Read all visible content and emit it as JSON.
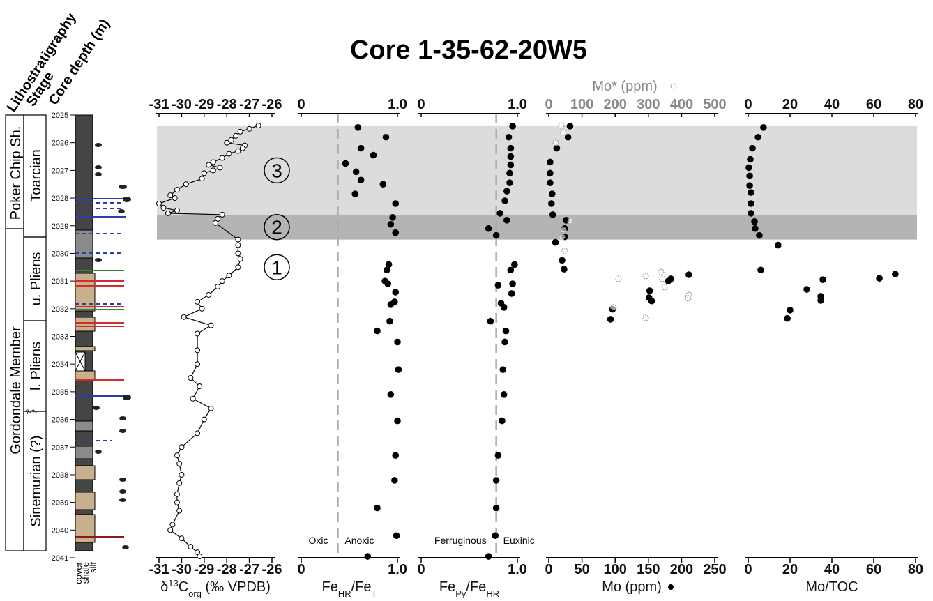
{
  "chart_data": {
    "title": "Core 1-35-62-20W5",
    "header_labels": [
      "Lithostratigraphy",
      "Stage",
      "Core depth (m)"
    ],
    "lithostratigraphy": [
      "Poker Chip Sh.",
      "Gordondale Member"
    ],
    "stages": [
      "Toarcian",
      "u. Pliens",
      "l. Pliens",
      "Sinemurian (?)"
    ],
    "boundary_marker": "?-?-",
    "lithology_legend": [
      "cover",
      "shale",
      "silt"
    ],
    "ylim": [
      2025,
      2041
    ],
    "yticks": [
      2025,
      2026,
      2027,
      2028,
      2029,
      2030,
      2031,
      2032,
      2033,
      2034,
      2035,
      2036,
      2037,
      2038,
      2039,
      2040,
      2041
    ],
    "zones": [
      {
        "label": "3",
        "top": 2025.4,
        "bottom": 2028.6,
        "color": "#dcdcdc"
      },
      {
        "label": "2",
        "top": 2028.6,
        "bottom": 2029.5,
        "color": "#b4b4b4"
      },
      {
        "label": "1",
        "top": 2029.5,
        "bottom": 2031.5,
        "color": "none"
      }
    ],
    "panels": [
      {
        "type": "line",
        "xlabel": [
          "δ",
          "13",
          "C",
          "org",
          "  (‰ VPDB)"
        ],
        "xlim": [
          -31,
          -26
        ],
        "xticks": [
          -31,
          -30,
          -29,
          -28,
          -27,
          -26
        ],
        "series": [
          {
            "color": "#000000",
            "marker_fill": "#ffffff",
            "depth": [
              2025.38,
              2025.5,
              2025.6,
              2025.75,
              2025.9,
              2026.0,
              2026.1,
              2026.2,
              2026.3,
              2026.4,
              2026.55,
              2026.7,
              2026.8,
              2026.9,
              2027.0,
              2027.1,
              2027.3,
              2027.5,
              2027.7,
              2027.9,
              2028.0,
              2028.2,
              2028.35,
              2028.45,
              2028.55,
              2028.6,
              2028.75,
              2028.9,
              2029.5,
              2029.7,
              2030.0,
              2030.2,
              2030.5,
              2030.8,
              2031.0,
              2031.2,
              2031.5,
              2031.75,
              2032.0,
              2032.3,
              2032.6,
              2032.9,
              2033.5,
              2034.0,
              2034.5,
              2034.8,
              2035.25,
              2035.6,
              2036.0,
              2036.5,
              2037.0,
              2037.3,
              2037.6,
              2038.0,
              2038.3,
              2038.7,
              2039.0,
              2039.3,
              2039.8,
              2040.0,
              2040.3,
              2040.6,
              2040.8,
              2040.95
            ],
            "values": [
              -26.6,
              -27.0,
              -27.4,
              -27.6,
              -27.8,
              -28.0,
              -27.2,
              -27.3,
              -27.5,
              -27.9,
              -28.2,
              -28.6,
              -28.8,
              -28.3,
              -28.6,
              -29.0,
              -29.1,
              -29.8,
              -30.2,
              -30.5,
              -30.3,
              -31.0,
              -30.8,
              -30.2,
              -30.6,
              -28.2,
              -28.4,
              -28.5,
              -27.5,
              -27.5,
              -27.5,
              -27.4,
              -27.5,
              -27.9,
              -28.2,
              -28.4,
              -28.8,
              -29.3,
              -29.1,
              -29.9,
              -28.7,
              -29.3,
              -29.3,
              -29.3,
              -29.6,
              -29.2,
              -29.5,
              -28.7,
              -29.0,
              -29.3,
              -30.0,
              -30.2,
              -30.1,
              -30.0,
              -30.1,
              -30.2,
              -30.2,
              -30.1,
              -30.4,
              -30.5,
              -30.0,
              -29.6,
              -29.3,
              -29.2
            ]
          }
        ]
      },
      {
        "type": "scatter",
        "xlabel": [
          "Fe",
          "HR",
          "/Fe",
          "T"
        ],
        "xlim": [
          0,
          1
        ],
        "xticks": [
          0,
          {
            "value": 1,
            "label": "1.0"
          }
        ],
        "threshold": {
          "value": 0.38,
          "labels": [
            "Oxic",
            "Anoxic"
          ]
        },
        "series": [
          {
            "color": "#000000",
            "depth": [
              2025.45,
              2025.8,
              2026.2,
              2026.45,
              2026.75,
              2027.05,
              2027.35,
              2027.5,
              2027.85,
              2028.2,
              2028.7,
              2028.95,
              2029.25,
              2030.4,
              2030.6,
              2031.0,
              2031.1,
              2031.4,
              2031.75,
              2031.85,
              2032.45,
              2032.8,
              2033.2,
              2034.2,
              2035.1,
              2036.05,
              2037.3,
              2038.2,
              2039.2,
              2040.2,
              2040.95
            ],
            "values": [
              0.59,
              0.88,
              0.62,
              0.75,
              0.46,
              0.57,
              0.62,
              0.85,
              0.56,
              0.98,
              0.95,
              0.93,
              0.98,
              0.91,
              0.89,
              0.87,
              0.9,
              0.98,
              0.97,
              0.93,
              0.92,
              0.79,
              1.0,
              1.01,
              0.93,
              1.0,
              0.98,
              0.97,
              0.79,
              0.99,
              0.69
            ]
          }
        ]
      },
      {
        "type": "scatter",
        "xlabel": [
          "Fe",
          "Py",
          "/Fe",
          "HR"
        ],
        "xlim": [
          0,
          1
        ],
        "xticks": [
          0,
          {
            "value": 1,
            "label": "1.0"
          }
        ],
        "threshold": {
          "value": 0.78,
          "labels": [
            "Ferruginous",
            "Euxinic"
          ]
        },
        "series": [
          {
            "color": "#000000",
            "depth": [
              2025.4,
              2025.8,
              2026.2,
              2026.5,
              2026.8,
              2027.1,
              2027.45,
              2027.75,
              2028.1,
              2028.55,
              2028.8,
              2029.1,
              2029.35,
              2030.4,
              2030.6,
              2031.1,
              2031.15,
              2031.45,
              2031.8,
              2031.95,
              2032.45,
              2032.8,
              2033.2,
              2034.2,
              2035.1,
              2036.05,
              2037.3,
              2038.2,
              2039.2,
              2040.2,
              2040.95
            ],
            "values": [
              0.95,
              0.91,
              0.93,
              0.93,
              0.93,
              0.92,
              0.92,
              0.89,
              0.87,
              0.82,
              0.89,
              0.7,
              0.78,
              0.97,
              0.93,
              0.95,
              0.8,
              0.94,
              0.83,
              0.86,
              0.72,
              0.88,
              0.87,
              0.85,
              0.86,
              0.84,
              0.8,
              0.78,
              0.78,
              0.77,
              0.7
            ]
          }
        ]
      },
      {
        "type": "scatter",
        "xlabel": [
          "Mo (ppm)"
        ],
        "x2label": [
          "Mo* (ppm)"
        ],
        "xlim": [
          0,
          250
        ],
        "xticks": [
          0,
          50,
          100,
          150,
          200,
          250
        ],
        "x2lim": [
          0,
          500
        ],
        "x2ticks": [
          0,
          100,
          200,
          300,
          400,
          500
        ],
        "series": [
          {
            "color": "#000000",
            "depth": [
              2025.4,
              2025.8,
              2026.2,
              2026.7,
              2027.1,
              2027.45,
              2027.85,
              2028.2,
              2028.6,
              2028.8,
              2029.1,
              2029.4,
              2029.6,
              2030.25,
              2030.57,
              2030.77,
              2030.92,
              2031.0,
              2031.35,
              2031.6,
              2031.72,
              2032.02,
              2032.38
            ],
            "values": [
              32,
              29,
              12,
              2,
              2,
              2,
              5,
              4,
              6,
              26,
              24,
              24,
              10,
              20,
              23,
              211,
              184,
              180,
              152,
              151,
              155,
              96,
              93
            ]
          },
          {
            "color": "#999999",
            "marker": "open",
            "axis": "x2",
            "depth": [
              2025.38,
              2025.63,
              2026.0,
              2028.83,
              2029.16,
              2029.41,
              2029.91,
              2030.92,
              2030.82,
              2030.67,
              2030.92,
              2031.22,
              2031.5,
              2031.62,
              2031.95,
              2032.33
            ],
            "values": [
              38,
              44,
              21,
              65,
              44,
              40,
              48,
              210,
              292,
              338,
              342,
              349,
              422,
              420,
              195,
              292
            ]
          }
        ]
      },
      {
        "type": "scatter",
        "xlabel": [
          "Mo/TOC"
        ],
        "xlim": [
          0,
          80
        ],
        "xticks": [
          0,
          20,
          40,
          60,
          80
        ],
        "series": [
          {
            "color": "#000000",
            "depth": [
              2025.45,
              2025.8,
              2026.2,
              2026.6,
              2026.9,
              2027.2,
              2027.55,
              2027.8,
              2028.2,
              2028.55,
              2028.85,
              2029.1,
              2029.35,
              2029.7,
              2030.6,
              2030.75,
              2030.9,
              2030.95,
              2031.3,
              2031.55,
              2031.7,
              2032.05,
              2032.35
            ],
            "values": [
              7.3,
              4.7,
              2.0,
              1.0,
              0.3,
              0.7,
              0.7,
              1.3,
              1.3,
              1.3,
              3.0,
              3.3,
              5.3,
              14.3,
              6.0,
              70.3,
              62.7,
              35.7,
              28,
              34.7,
              34.7,
              20,
              18.7
            ]
          }
        ]
      }
    ]
  }
}
